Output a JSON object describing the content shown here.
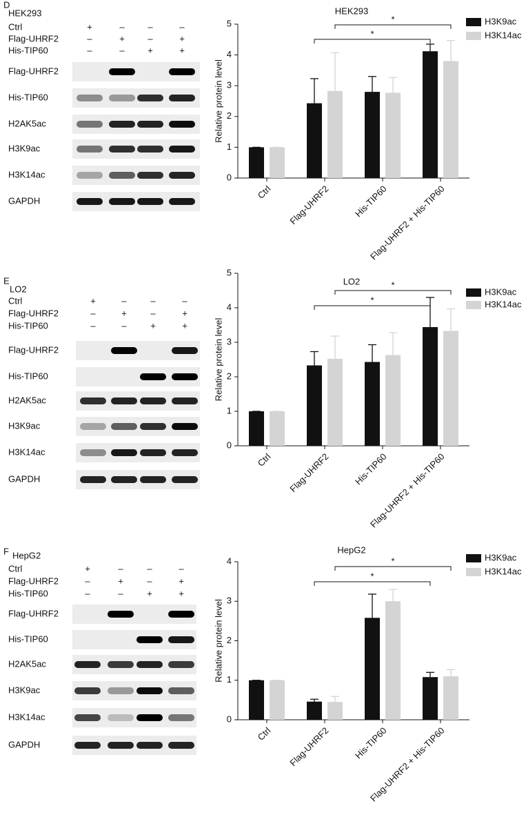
{
  "panels": [
    {
      "letter": "D",
      "cell_line": "HEK293",
      "conditions": [
        {
          "name": "Ctrl",
          "signs": [
            "+",
            "–",
            "–",
            "–"
          ]
        },
        {
          "name": "Flag-UHRF2",
          "signs": [
            "–",
            "+",
            "–",
            "+"
          ]
        },
        {
          "name": "His-TIP60",
          "signs": [
            "–",
            "–",
            "+",
            "+"
          ]
        }
      ],
      "blots": [
        "Flag-UHRF2",
        "His-TIP60",
        "H2AK5ac",
        "H3K9ac",
        "H3K14ac",
        "GAPDH"
      ]
    },
    {
      "letter": "E",
      "cell_line": "LO2",
      "conditions": [
        {
          "name": "Ctrl",
          "signs": [
            "+",
            "–",
            "–",
            "–"
          ]
        },
        {
          "name": "Flag-UHRF2",
          "signs": [
            "–",
            "+",
            "–",
            "+"
          ]
        },
        {
          "name": "His-TIP60",
          "signs": [
            "–",
            "–",
            "+",
            "+"
          ]
        }
      ],
      "blots": [
        "Flag-UHRF2",
        "His-TIP60",
        "H2AK5ac",
        "H3K9ac",
        "H3K14ac",
        "GAPDH"
      ]
    },
    {
      "letter": "F",
      "cell_line": "HepG2",
      "conditions": [
        {
          "name": "Ctrl",
          "signs": [
            "+",
            "–",
            "–",
            "–"
          ]
        },
        {
          "name": "Flag-UHRF2",
          "signs": [
            "–",
            "+",
            "–",
            "+"
          ]
        },
        {
          "name": "His-TIP60",
          "signs": [
            "–",
            "–",
            "+",
            "+"
          ]
        }
      ],
      "blots": [
        "Flag-UHRF2",
        "His-TIP60",
        "H2AK5ac",
        "H3K9ac",
        "H3K14ac",
        "GAPDH"
      ]
    }
  ],
  "chart_data": [
    {
      "type": "bar",
      "title": "HEK293",
      "y_label": "Relative protein level",
      "categories": [
        "Ctrl",
        "Flag-UHRF2",
        "His-TIP60",
        "Flag-UHRF2 + His-TIP60"
      ],
      "series": [
        {
          "name": "H3K9ac",
          "color": "#111111",
          "values": [
            1,
            2.43,
            2.8,
            4.12
          ],
          "errors": [
            0,
            0.8,
            0.5,
            0.23
          ]
        },
        {
          "name": "H3K14ac",
          "color": "#d4d4d4",
          "values": [
            1,
            2.83,
            2.77,
            3.8
          ],
          "errors": [
            0,
            1.24,
            0.5,
            0.67
          ]
        }
      ],
      "ylim": [
        0,
        5
      ],
      "yticks": [
        0,
        1,
        2,
        3,
        4,
        5
      ],
      "legend": "upper right",
      "annotations": [
        {
          "text": "*"
        },
        {
          "text": "*"
        }
      ]
    },
    {
      "type": "bar",
      "title": "LO2",
      "y_label": "Relative protein level",
      "categories": [
        "Ctrl",
        "Flag-UHRF2",
        "His-TIP60",
        "Flag-UHRF2 + His-TIP60"
      ],
      "series": [
        {
          "name": "H3K9ac",
          "color": "#111111",
          "values": [
            1,
            2.33,
            2.43,
            3.44
          ],
          "errors": [
            0,
            0.4,
            0.5,
            0.86
          ]
        },
        {
          "name": "H3K14ac",
          "color": "#d4d4d4",
          "values": [
            1,
            2.52,
            2.63,
            3.33
          ],
          "errors": [
            0,
            0.66,
            0.65,
            0.64
          ]
        }
      ],
      "ylim": [
        0,
        5
      ],
      "yticks": [
        0,
        1,
        2,
        3,
        4,
        5
      ],
      "legend": "upper right",
      "annotations": [
        {
          "text": "*"
        },
        {
          "text": "*"
        }
      ]
    },
    {
      "type": "bar",
      "title": "HepG2",
      "y_label": "Relative protein level",
      "categories": [
        "Ctrl",
        "Flag-UHRF2",
        "His-TIP60",
        "Flag-UHRF2 + His-TIP60"
      ],
      "series": [
        {
          "name": "H3K9ac",
          "color": "#111111",
          "values": [
            1,
            0.46,
            2.58,
            1.08
          ],
          "errors": [
            0,
            0.06,
            0.6,
            0.12
          ]
        },
        {
          "name": "H3K14ac",
          "color": "#d4d4d4",
          "values": [
            1,
            0.45,
            3.0,
            1.1
          ],
          "errors": [
            0,
            0.14,
            0.3,
            0.17
          ]
        }
      ],
      "ylim": [
        0,
        4
      ],
      "yticks": [
        0,
        1,
        2,
        3,
        4
      ],
      "legend": "upper right",
      "annotations": [
        {
          "text": "*"
        },
        {
          "text": "*"
        }
      ]
    }
  ]
}
